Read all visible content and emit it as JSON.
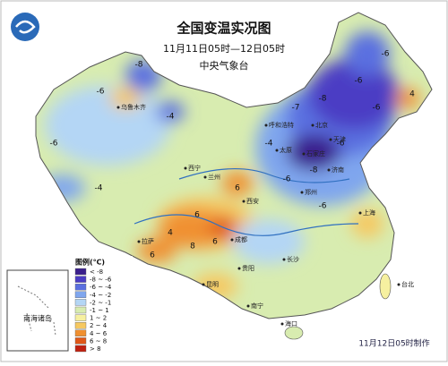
{
  "header": {
    "title": "全国变温实况图",
    "subtitle": "11月11日05时—12日05时",
    "agency": "中央气象台"
  },
  "legend": {
    "title": "图例(℃)",
    "items": [
      {
        "label": "< -8",
        "color": "#3a1f8c"
      },
      {
        "label": "-8 ~ -6",
        "color": "#4b3cc4"
      },
      {
        "label": "-6 ~ -4",
        "color": "#5a6fe0"
      },
      {
        "label": "-4 ~ -2",
        "color": "#7fa6ee"
      },
      {
        "label": "-2 ~ -1",
        "color": "#b4d6f5"
      },
      {
        "label": "-1 ~ 1",
        "color": "#d8ecb0"
      },
      {
        "label": "1 ~ 2",
        "color": "#f6f0a0"
      },
      {
        "label": "2 ~ 4",
        "color": "#f6c860"
      },
      {
        "label": "4 ~ 6",
        "color": "#f09030"
      },
      {
        "label": "6 ~ 8",
        "color": "#e05818"
      },
      {
        "label": "> 8",
        "color": "#c02010"
      }
    ]
  },
  "cities": [
    "乌鲁木齐",
    "拉萨",
    "成都",
    "西宁",
    "兰州",
    "呼和浩特",
    "北京",
    "天津",
    "石家庄",
    "太原",
    "济南",
    "郑州",
    "西安",
    "上海",
    "长沙",
    "贵阳",
    "昆明",
    "南宁",
    "海口",
    "台北"
  ],
  "anomalies": [
    "-6",
    "-8",
    "-6",
    "-7",
    "-8",
    "-6",
    "-6",
    "-4",
    "-6",
    "-8",
    "-4",
    "-6",
    "6",
    "4",
    "6",
    "6",
    "8",
    "6",
    "-4",
    "-6",
    "4",
    "-6"
  ],
  "inset": {
    "label": "南海诸岛"
  },
  "footer": "11月12日05时制作"
}
